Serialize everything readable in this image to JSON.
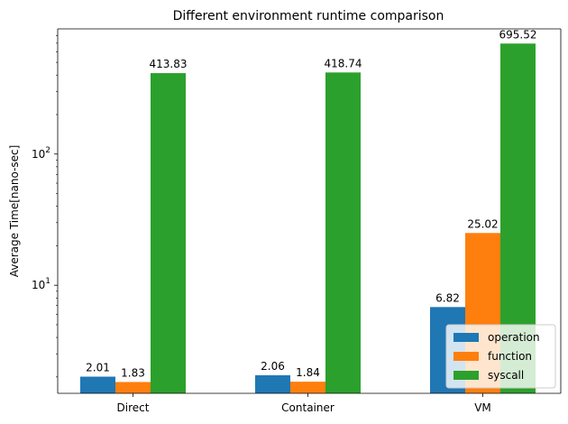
{
  "chart_data": {
    "type": "bar",
    "title": "Different environment runtime comparison",
    "xlabel": "",
    "ylabel": "Average Time[nano-sec]",
    "yscale": "log",
    "ylim": [
      1.5,
      900
    ],
    "grid": false,
    "legend_position": "lower right",
    "categories": [
      "Direct",
      "Container",
      "VM"
    ],
    "series": [
      {
        "name": "operation",
        "color": "#1f77b4",
        "values": [
          2.01,
          2.06,
          6.82
        ],
        "labels": [
          "2.01",
          "2.06",
          "6.82"
        ]
      },
      {
        "name": "function",
        "color": "#ff7f0e",
        "values": [
          1.83,
          1.84,
          25.02
        ],
        "labels": [
          "1.83",
          "1.84",
          "25.02"
        ]
      },
      {
        "name": "syscall",
        "color": "#2ca02c",
        "values": [
          413.83,
          418.74,
          695.52
        ],
        "labels": [
          "413.83",
          "418.74",
          "695.52"
        ]
      }
    ],
    "y_major_ticks": [
      {
        "value": 10,
        "base": "10",
        "exp": "1"
      },
      {
        "value": 100,
        "base": "10",
        "exp": "2"
      }
    ]
  }
}
